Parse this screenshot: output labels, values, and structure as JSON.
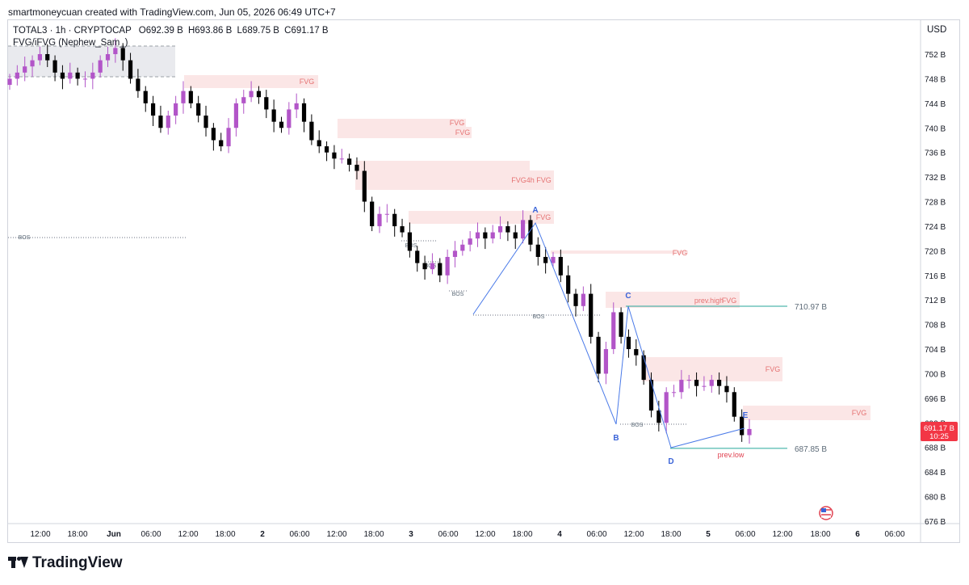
{
  "caption": "smartmoneycuan created with TradingView.com, Jun 05, 2026 06:49 UTC+7",
  "legend": {
    "symbol": "TOTAL3 · 1h · CRYPTOCAP",
    "open": "O692.39 B",
    "high": "H693.86 B",
    "low": "L689.75 B",
    "close": "C691.17 B",
    "indicator": "FVG/iFVG (Nephew_Sam_)"
  },
  "currency": "USD",
  "brand": "TradingView",
  "colors": {
    "bull": "#b255c8",
    "bear": "#000000",
    "fvg_fill": "#fbe6e6",
    "fvg_text": "#e57373",
    "leg_line": "#4a7ae8",
    "point_label": "#3b64d8",
    "level_line": "#26a69a",
    "level_text": "#5d6b78",
    "price_tag": "#f23645",
    "bos_text": "#5d6b78"
  },
  "y_axis_labels": [
    "752 B",
    "748 B",
    "744 B",
    "740 B",
    "736 B",
    "732 B",
    "728 B",
    "724 B",
    "720 B",
    "716 B",
    "712 B",
    "708 B",
    "704 B",
    "700 B",
    "696 B",
    "692 B",
    "688 B",
    "684 B",
    "680 B",
    "676 B"
  ],
  "x_axis_labels": [
    "12:00",
    "18:00",
    "Jun",
    "06:00",
    "12:00",
    "18:00",
    "2",
    "06:00",
    "12:00",
    "18:00",
    "3",
    "06:00",
    "12:00",
    "18:00",
    "4",
    "06:00",
    "12:00",
    "18:00",
    "5",
    "06:00",
    "12:00",
    "18:00",
    "6",
    "06:00"
  ],
  "current_price": {
    "value": "691.17 B",
    "countdown": "10:25"
  },
  "levels": [
    {
      "label": "710.97 B",
      "price": 710.97
    },
    {
      "label": "687.85 B",
      "price": 687.85
    }
  ],
  "zone_labels": {
    "fvg": "FVG",
    "fvg_4h": "FVG4h FVG",
    "prev_high": "prev.high",
    "prev_low": "prev.low",
    "bos": "BOS"
  },
  "swing_points": [
    "A",
    "B",
    "C",
    "D",
    "E"
  ],
  "chart_data": {
    "type": "candlestick",
    "symbol": "TOTAL3",
    "timeframe": "1h",
    "ylim": [
      676,
      754
    ],
    "ohlc_last": {
      "open": 692.39,
      "high": 693.86,
      "low": 689.75,
      "close": 691.17
    },
    "swing_points": [
      {
        "label": "A",
        "price": 725.0
      },
      {
        "label": "B",
        "price": 691.5
      },
      {
        "label": "C",
        "price": 711.0
      },
      {
        "label": "D",
        "price": 687.8
      },
      {
        "label": "E",
        "price": 691.0
      }
    ],
    "closes": [
      748,
      749,
      750,
      751,
      752,
      751,
      749,
      748,
      749,
      748,
      748,
      749,
      751,
      752,
      753,
      751,
      748,
      746,
      744,
      742,
      740,
      742,
      744,
      746,
      744,
      742,
      740,
      738,
      737,
      740,
      744,
      745,
      746,
      745,
      743,
      741,
      740,
      743,
      744,
      741,
      738,
      737,
      736,
      735,
      735,
      734,
      733,
      728,
      724,
      726,
      726,
      724,
      723,
      720,
      718,
      717,
      718,
      716,
      719,
      720,
      721,
      722,
      723,
      722,
      723,
      724,
      723,
      722,
      725,
      721,
      719,
      718,
      719,
      716,
      713,
      711,
      713,
      706,
      700,
      704,
      710,
      706,
      704,
      703,
      699,
      694,
      692,
      697,
      697,
      699,
      699,
      698,
      698,
      699,
      698,
      697,
      693,
      690,
      691
    ]
  }
}
